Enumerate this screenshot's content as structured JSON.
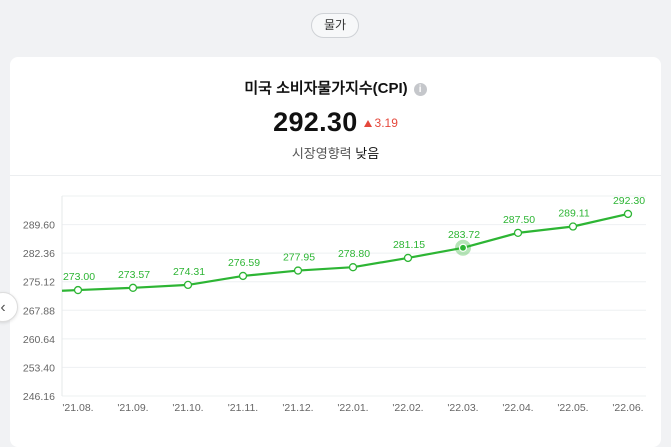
{
  "category_pill": "물가",
  "header": {
    "title": "미국 소비자물가지수(CPI)",
    "info_icon": "info-icon",
    "value": "292.30",
    "change": "3.19",
    "change_direction": "up",
    "impact_label": "시장영향력",
    "impact_value": "낮음"
  },
  "colors": {
    "line": "#2db534",
    "up": "#e5483c",
    "highlight": "#2db534"
  },
  "chart_data": {
    "type": "line",
    "title": "",
    "xlabel": "",
    "ylabel": "",
    "categories": [
      "'21.08.",
      "'21.09.",
      "'21.10.",
      "'21.11.",
      "'21.12.",
      "'22.01.",
      "'22.02.",
      "'22.03.",
      "'22.04.",
      "'22.05.",
      "'22.06."
    ],
    "series": [
      {
        "values": [
          273.0,
          273.57,
          274.31,
          276.59,
          277.95,
          278.8,
          281.15,
          283.72,
          287.5,
          289.11,
          292.3
        ]
      }
    ],
    "data_labels": [
      "273.00",
      "273.57",
      "274.31",
      "276.59",
      "277.95",
      "278.80",
      "281.15",
      "283.72",
      "287.50",
      "289.11",
      "292.30"
    ],
    "y_ticks": [
      "289.60",
      "282.36",
      "275.12",
      "267.88",
      "260.64",
      "253.40",
      "246.16"
    ],
    "y_tick_values": [
      289.6,
      282.36,
      275.12,
      267.88,
      260.64,
      253.4,
      246.16
    ],
    "ylim": [
      246.16,
      296.84
    ],
    "highlighted_point": "'22.03.",
    "grid": true,
    "legend": "none"
  }
}
